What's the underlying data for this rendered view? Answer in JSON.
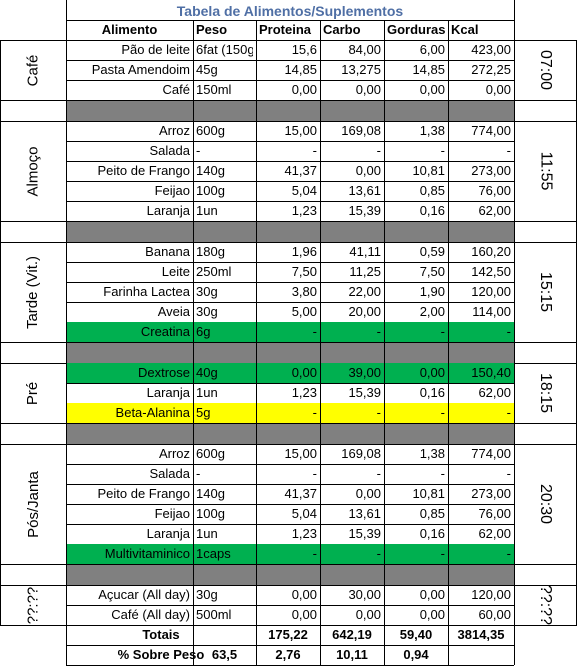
{
  "title": "Tabela de Alimentos/Suplementos",
  "headers": [
    "Alimento",
    "Peso",
    "Proteina",
    "Carbo",
    "Gorduras",
    "Kcal"
  ],
  "colors": {
    "green": "#00b050",
    "yellow": "#ffff00",
    "separator": "#808080",
    "title": "#4f6fa5"
  },
  "sections": [
    {
      "label": "Café",
      "time": "07:00",
      "rows": [
        {
          "alimento": "Pão de leite",
          "peso": "6fat (150g",
          "proteina": "15,6",
          "carbo": "84,00",
          "gorduras": "6,00",
          "kcal": "423,00"
        },
        {
          "alimento": "Pasta Amendoim",
          "peso": "45g",
          "proteina": "14,85",
          "carbo": "13,275",
          "gorduras": "14,85",
          "kcal": "272,25"
        },
        {
          "alimento": "Café",
          "peso": "150ml",
          "proteina": "0,00",
          "carbo": "0,00",
          "gorduras": "0,00",
          "kcal": "0,00"
        }
      ]
    },
    {
      "label": "Almoço",
      "time": "11:55",
      "rows": [
        {
          "alimento": "Arroz",
          "peso": "600g",
          "proteina": "15,00",
          "carbo": "169,08",
          "gorduras": "1,38",
          "kcal": "774,00"
        },
        {
          "alimento": "Salada",
          "peso": "-",
          "proteina": "-",
          "carbo": "-",
          "gorduras": "-",
          "kcal": "-"
        },
        {
          "alimento": "Peito de Frango",
          "peso": "140g",
          "proteina": "41,37",
          "carbo": "0,00",
          "gorduras": "10,81",
          "kcal": "273,00"
        },
        {
          "alimento": "Feijao",
          "peso": "100g",
          "proteina": "5,04",
          "carbo": "13,61",
          "gorduras": "0,85",
          "kcal": "76,00"
        },
        {
          "alimento": "Laranja",
          "peso": "1un",
          "proteina": "1,23",
          "carbo": "15,39",
          "gorduras": "0,16",
          "kcal": "62,00"
        }
      ]
    },
    {
      "label": "Tarde (Vit.)",
      "time": "15:15",
      "rows": [
        {
          "alimento": "Banana",
          "peso": "180g",
          "proteina": "1,96",
          "carbo": "41,11",
          "gorduras": "0,59",
          "kcal": "160,20"
        },
        {
          "alimento": "Leite",
          "peso": "250ml",
          "proteina": "7,50",
          "carbo": "11,25",
          "gorduras": "7,50",
          "kcal": "142,50"
        },
        {
          "alimento": "Farinha Lactea",
          "peso": "30g",
          "proteina": "3,80",
          "carbo": "22,00",
          "gorduras": "1,90",
          "kcal": "120,00"
        },
        {
          "alimento": "Aveia",
          "peso": "30g",
          "proteina": "5,00",
          "carbo": "20,00",
          "gorduras": "2,00",
          "kcal": "114,00"
        },
        {
          "alimento": "Creatina",
          "peso": "6g",
          "proteina": "-",
          "carbo": "-",
          "gorduras": "-",
          "kcal": "-",
          "fill": "green"
        }
      ]
    },
    {
      "label": "Pré",
      "time": "18:15",
      "rows": [
        {
          "alimento": "Dextrose",
          "peso": "40g",
          "proteina": "0,00",
          "carbo": "39,00",
          "gorduras": "0,00",
          "kcal": "150,40",
          "fill": "green"
        },
        {
          "alimento": "Laranja",
          "peso": "1un",
          "proteina": "1,23",
          "carbo": "15,39",
          "gorduras": "0,16",
          "kcal": "62,00"
        },
        {
          "alimento": "Beta-Alanina",
          "peso": "5g",
          "proteina": "-",
          "carbo": "-",
          "gorduras": "-",
          "kcal": "-",
          "fill": "yellow"
        }
      ]
    },
    {
      "label": "Pós/Janta",
      "time": "20:30",
      "rows": [
        {
          "alimento": "Arroz",
          "peso": "600g",
          "proteina": "15,00",
          "carbo": "169,08",
          "gorduras": "1,38",
          "kcal": "774,00"
        },
        {
          "alimento": "Salada",
          "peso": "-",
          "proteina": "-",
          "carbo": "-",
          "gorduras": "-",
          "kcal": "-"
        },
        {
          "alimento": "Peito de Frango",
          "peso": "140g",
          "proteina": "41,37",
          "carbo": "0,00",
          "gorduras": "10,81",
          "kcal": "273,00"
        },
        {
          "alimento": "Feijao",
          "peso": "100g",
          "proteina": "5,04",
          "carbo": "13,61",
          "gorduras": "0,85",
          "kcal": "76,00"
        },
        {
          "alimento": "Laranja",
          "peso": "1un",
          "proteina": "1,23",
          "carbo": "15,39",
          "gorduras": "0,16",
          "kcal": "62,00"
        },
        {
          "alimento": "Multivitaminico",
          "peso": "1caps",
          "proteina": "-",
          "carbo": "-",
          "gorduras": "-",
          "kcal": "-",
          "fill": "green"
        }
      ]
    },
    {
      "label": "??:??",
      "time": "??:??",
      "rows": [
        {
          "alimento": "Açucar (All day)",
          "peso": "30g",
          "proteina": "0,00",
          "carbo": "30,00",
          "gorduras": "0,00",
          "kcal": "120,00"
        },
        {
          "alimento": "Café (All day)",
          "peso": "500ml",
          "proteina": "0,00",
          "carbo": "0,00",
          "gorduras": "0,00",
          "kcal": "60,00"
        }
      ]
    }
  ],
  "totals": {
    "label": "Totais",
    "peso": "",
    "proteina": "175,22",
    "carbo": "642,19",
    "gorduras": "59,40",
    "kcal": "3814,35"
  },
  "percent": {
    "label": "% Sobre Peso",
    "peso": "63,5",
    "proteina": "2,76",
    "carbo": "10,11",
    "gorduras": "0,94",
    "kcal": ""
  }
}
